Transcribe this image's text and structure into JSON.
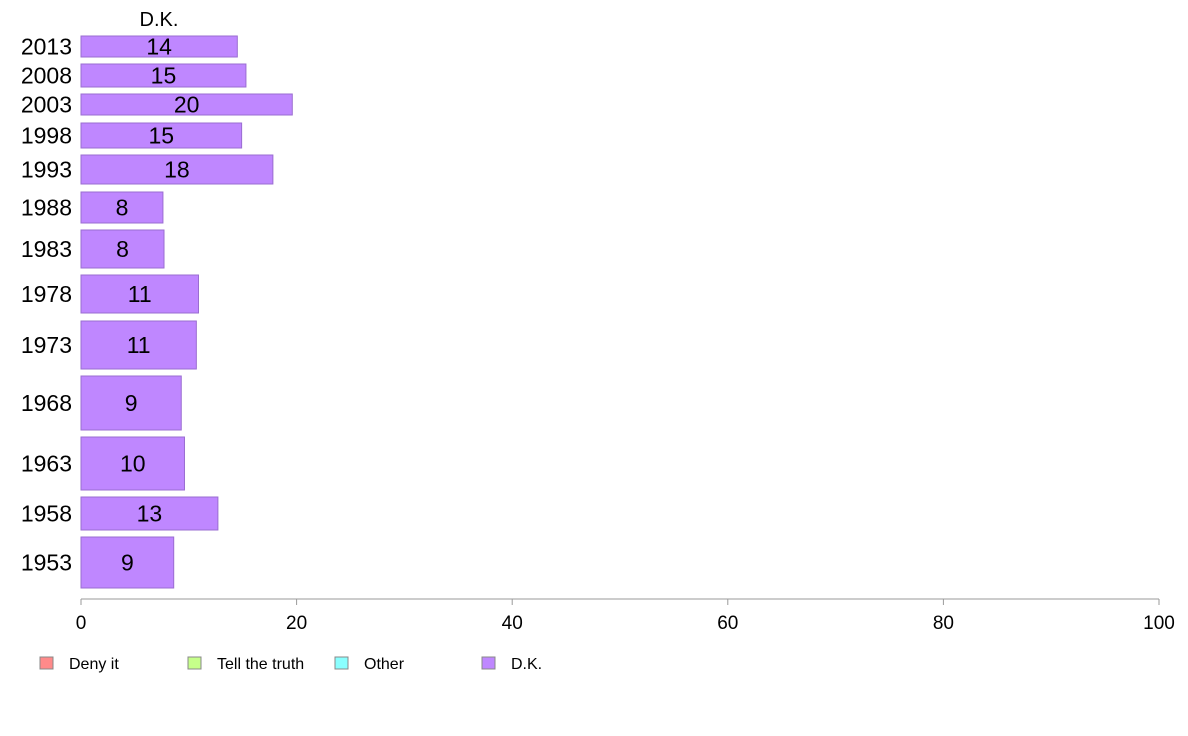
{
  "chart_data": {
    "type": "bar",
    "orientation": "horizontal",
    "column_title": "D.K.",
    "categories": [
      "2013",
      "2008",
      "2003",
      "1998",
      "1993",
      "1988",
      "1983",
      "1978",
      "1973",
      "1968",
      "1963",
      "1958",
      "1953"
    ],
    "series": [
      {
        "name": "D.K.",
        "color": "#bf87ff",
        "values": [
          14.5,
          15.3,
          19.6,
          14.9,
          17.8,
          7.6,
          7.7,
          10.9,
          10.7,
          9.3,
          9.6,
          12.7,
          8.6
        ],
        "labels": [
          "14",
          "15",
          "20",
          "15",
          "18",
          "8",
          "8",
          "11",
          "11",
          "9",
          "10",
          "13",
          "9"
        ]
      }
    ],
    "xlim": [
      0,
      100
    ],
    "xticks": [
      "0",
      "20",
      "40",
      "60",
      "80",
      "100"
    ],
    "grid": false,
    "legend": {
      "placement": "bottom-left",
      "items": [
        {
          "label": "Deny it",
          "color": "#ff8a8a"
        },
        {
          "label": "Tell the truth",
          "color": "#c6ff8a"
        },
        {
          "label": "Other",
          "color": "#8affff"
        },
        {
          "label": "D.K.",
          "color": "#bf87ff"
        }
      ]
    }
  }
}
